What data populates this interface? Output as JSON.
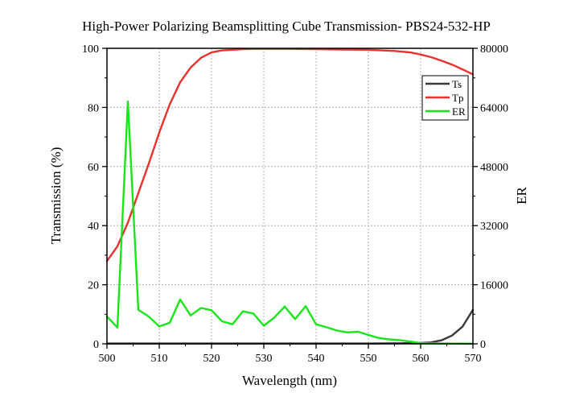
{
  "chart_data": {
    "type": "line",
    "title": "High-Power Polarizing Beamsplitting Cube Transmission- PBS24-532-HP",
    "xlabel": "Wavelength (nm)",
    "ylabel": "Transmission (%)",
    "y2label": "ER",
    "xlim": [
      500,
      570
    ],
    "ylim": [
      0,
      100
    ],
    "y2lim": [
      0,
      80000
    ],
    "xticks": [
      "500",
      "510",
      "520",
      "530",
      "540",
      "550",
      "560",
      "570"
    ],
    "yticks": [
      "0",
      "20",
      "40",
      "60",
      "80",
      "100"
    ],
    "y2ticks": [
      "0",
      "16000",
      "32000",
      "48000",
      "64000",
      "80000"
    ],
    "grid": true,
    "legend_position": "top-right",
    "series": [
      {
        "name": "Ts",
        "color": "#3a3a3a",
        "axis": "left",
        "points": [
          [
            500,
            0.1
          ],
          [
            510,
            0.1
          ],
          [
            520,
            0.1
          ],
          [
            530,
            0.1
          ],
          [
            540,
            0.1
          ],
          [
            550,
            0.1
          ],
          [
            556,
            0.2
          ],
          [
            560,
            0.3
          ],
          [
            562,
            0.5
          ],
          [
            564,
            1.2
          ],
          [
            566,
            2.8
          ],
          [
            568,
            5.8
          ],
          [
            570,
            11.5
          ]
        ]
      },
      {
        "name": "Tp",
        "color": "#e8322e",
        "axis": "left",
        "points": [
          [
            500,
            28
          ],
          [
            502,
            33
          ],
          [
            504,
            41
          ],
          [
            506,
            51
          ],
          [
            508,
            61
          ],
          [
            510,
            71.5
          ],
          [
            512,
            81
          ],
          [
            514,
            88.5
          ],
          [
            516,
            93.5
          ],
          [
            518,
            96.8
          ],
          [
            520,
            98.6
          ],
          [
            522,
            99.3
          ],
          [
            524,
            99.5
          ],
          [
            526,
            99.7
          ],
          [
            528,
            99.8
          ],
          [
            530,
            99.8
          ],
          [
            535,
            99.8
          ],
          [
            540,
            99.7
          ],
          [
            545,
            99.6
          ],
          [
            550,
            99.5
          ],
          [
            555,
            99.1
          ],
          [
            558,
            98.6
          ],
          [
            560,
            97.9
          ],
          [
            562,
            97.0
          ],
          [
            564,
            95.8
          ],
          [
            566,
            94.5
          ],
          [
            568,
            92.9
          ],
          [
            570,
            91.2
          ]
        ]
      },
      {
        "name": "ER",
        "color": "#19e619",
        "axis": "right",
        "points": [
          [
            500,
            7400
          ],
          [
            502,
            4400
          ],
          [
            504,
            65600
          ],
          [
            506,
            9200
          ],
          [
            508,
            7400
          ],
          [
            510,
            4700
          ],
          [
            512,
            5700
          ],
          [
            514,
            12000
          ],
          [
            516,
            7700
          ],
          [
            518,
            9700
          ],
          [
            520,
            9100
          ],
          [
            522,
            6100
          ],
          [
            524,
            5300
          ],
          [
            526,
            8800
          ],
          [
            528,
            8200
          ],
          [
            530,
            4900
          ],
          [
            532,
            7100
          ],
          [
            534,
            10100
          ],
          [
            536,
            6700
          ],
          [
            538,
            10200
          ],
          [
            540,
            5300
          ],
          [
            542,
            4500
          ],
          [
            544,
            3600
          ],
          [
            546,
            3100
          ],
          [
            548,
            3300
          ],
          [
            550,
            2400
          ],
          [
            552,
            1600
          ],
          [
            554,
            1200
          ],
          [
            556,
            1000
          ],
          [
            558,
            600
          ],
          [
            560,
            200
          ],
          [
            562,
            150
          ],
          [
            564,
            100
          ],
          [
            566,
            80
          ],
          [
            568,
            60
          ],
          [
            570,
            50
          ]
        ]
      }
    ]
  }
}
